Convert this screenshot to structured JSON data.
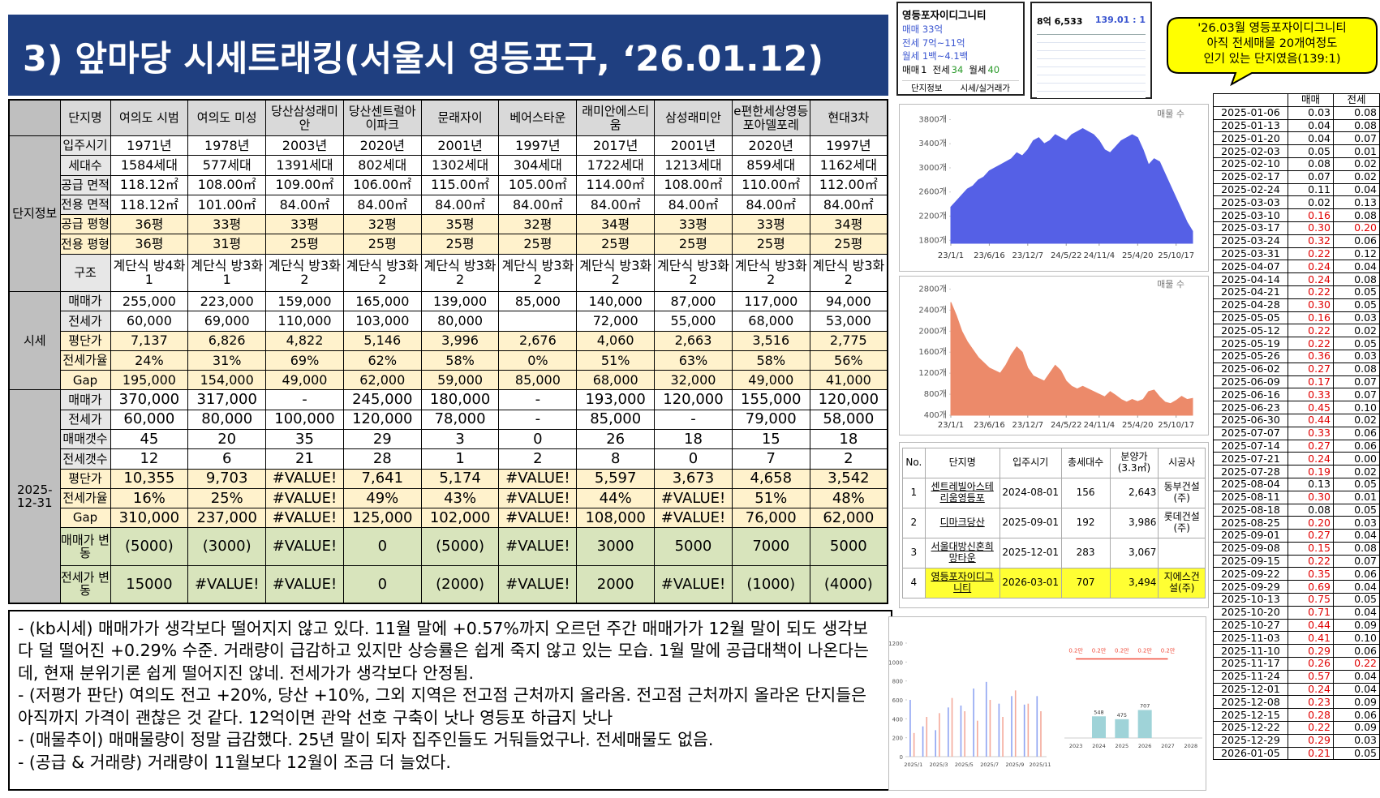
{
  "header": {
    "title": "3) 앞마당 시세트래킹(서울시 영등포구, ‘26.01.12)"
  },
  "main_table": {
    "columns": [
      "단지명",
      "여의도 시범",
      "여의도 미성",
      "당산삼성래미안",
      "당산센트럴아이파크",
      "문래자이",
      "베어스타운",
      "래미안에스티움",
      "삼성래미안",
      "e편한세상영등포아델포레",
      "현대3차"
    ],
    "groups": [
      {
        "label": "단지정보",
        "rows": [
          {
            "label": "입주시기",
            "cells": [
              "1971년",
              "1978년",
              "2003년",
              "2020년",
              "2001년",
              "1997년",
              "2017년",
              "2001년",
              "2020년",
              "1997년"
            ]
          },
          {
            "label": "세대수",
            "cells": [
              "1584세대",
              "577세대",
              "1391세대",
              "802세대",
              "1302세대",
              "304세대",
              "1722세대",
              "1213세대",
              "859세대",
              "1162세대"
            ]
          },
          {
            "label": "공급 면적",
            "cells": [
              "118.12㎡",
              "108.00㎡",
              "109.00㎡",
              "106.00㎡",
              "115.00㎡",
              "105.00㎡",
              "114.00㎡",
              "108.00㎡",
              "110.00㎡",
              "112.00㎡"
            ]
          },
          {
            "label": "전용 면적",
            "cells": [
              "118.12㎡",
              "101.00㎡",
              "84.00㎡",
              "84.00㎡",
              "84.00㎡",
              "84.00㎡",
              "84.00㎡",
              "84.00㎡",
              "84.00㎡",
              "84.00㎡"
            ]
          },
          {
            "label": "공급 평형",
            "cells": [
              "36평",
              "33평",
              "33평",
              "32평",
              "35평",
              "32평",
              "34평",
              "33평",
              "33평",
              "34평"
            ]
          },
          {
            "label": "전용 평형",
            "cells": [
              "36평",
              "31평",
              "25평",
              "25평",
              "25평",
              "25평",
              "25평",
              "25평",
              "25평",
              "25평"
            ]
          },
          {
            "label": "구조",
            "cells": [
              "계단식 방4화1",
              "계단식 방3화1",
              "계단식 방3화2",
              "계단식 방3화2",
              "계단식 방3화2",
              "계단식 방3화2",
              "계단식 방3화2",
              "계단식 방3화2",
              "계단식 방3화2",
              "계단식 방3화2"
            ]
          }
        ]
      },
      {
        "label": "시세",
        "rows": [
          {
            "label": "매매가",
            "cells": [
              "255,000",
              "223,000",
              "159,000",
              "165,000",
              "139,000",
              "85,000",
              "140,000",
              "87,000",
              "117,000",
              "94,000"
            ]
          },
          {
            "label": "전세가",
            "cells": [
              "60,000",
              "69,000",
              "110,000",
              "103,000",
              "80,000",
              null,
              "72,000",
              "55,000",
              "68,000",
              "53,000"
            ]
          },
          {
            "label": "평단가",
            "cells": [
              "7,137",
              "6,826",
              "4,822",
              "5,146",
              "3,996",
              "2,676",
              "4,060",
              "2,663",
              "3,516",
              "2,775"
            ]
          },
          {
            "label": "전세가율",
            "cells": [
              "24%",
              "31%",
              "69%",
              "62%",
              "58%",
              "0%",
              "51%",
              "63%",
              "58%",
              "56%"
            ]
          },
          {
            "label": "Gap",
            "cells": [
              "195,000",
              "154,000",
              "49,000",
              "62,000",
              "59,000",
              "85,000",
              "68,000",
              "32,000",
              "49,000",
              "41,000"
            ]
          }
        ]
      },
      {
        "label": "2025-12-31",
        "rows": [
          {
            "label": "매매가",
            "cells": [
              "370,000",
              "317,000",
              "-",
              "245,000",
              "180,000",
              "-",
              "193,000",
              "120,000",
              "155,000",
              "120,000"
            ]
          },
          {
            "label": "전세가",
            "cells": [
              "60,000",
              "80,000",
              "100,000",
              "120,000",
              "78,000",
              "-",
              "85,000",
              "-",
              "79,000",
              "58,000"
            ]
          },
          {
            "label": "매매갯수",
            "cells": [
              "45",
              "20",
              "35",
              "29",
              "3",
              "0",
              "26",
              "18",
              "15",
              "18"
            ]
          },
          {
            "label": "전세갯수",
            "cells": [
              "12",
              "6",
              "21",
              "28",
              "1",
              "2",
              "8",
              "0",
              "7",
              "2"
            ]
          },
          {
            "label": "평단가",
            "cells": [
              "10,355",
              "9,703",
              "#VALUE!",
              "7,641",
              "5,174",
              "#VALUE!",
              "5,597",
              "3,673",
              "4,658",
              "3,542"
            ]
          },
          {
            "label": "전세가율",
            "cells": [
              "16%",
              "25%",
              "#VALUE!",
              "49%",
              "43%",
              "#VALUE!",
              "44%",
              "#VALUE!",
              "51%",
              "48%"
            ]
          },
          {
            "label": "Gap",
            "cells": [
              "310,000",
              "237,000",
              "#VALUE!",
              "125,000",
              "102,000",
              "#VALUE!",
              "108,000",
              "#VALUE!",
              "76,000",
              "62,000"
            ]
          },
          {
            "label": "매매가 변동",
            "cells": [
              "(5000)",
              "(3000)",
              "#VALUE!",
              "0",
              "(5000)",
              "#VALUE!",
              "3000",
              "5000",
              "7000",
              "5000"
            ]
          },
          {
            "label": "전세가 변동",
            "cells": [
              "15000",
              "#VALUE!",
              "#VALUE!",
              "0",
              "(2000)",
              "#VALUE!",
              "2000",
              "#VALUE!",
              "(1000)",
              "(4000)"
            ]
          }
        ]
      }
    ]
  },
  "notes": [
    "- (kb시세) 매매가가 생각보다 떨어지지 않고 있다. 11월 말에 +0.57%까지 오르던 주간 매매가가 12월 말이 되도 생각보다 덜 떨어진 +0.29% 수준. 거래량이 급감하고 있지만 상승률은 쉽게 죽지 않고 있는 모습. 1월 말에 공급대책이 나온다는데, 현재 분위기론 쉽게 떨어지진 않네. 전세가가 생각보다 안정됨.",
    "- (저평가 판단) 여의도 전고 +20%, 당산 +10%, 그외 지역은 전고점 근처까지 올라옴. 전고점 근처까지 올라온 단지들은 아직까지 가격이 괜찮은 것 같다. 12억이면 관악 선호 구축이 낫나 영등포 하급지 낫나",
    "- (매물추이) 매매물량이 정말 급감했다. 25년 말이 되자 집주인들도 거둬들었구나. 전세매물도 없음.",
    "- (공급 & 거래량) 거래량이 11월보다 12월이 조금 더 늘었다."
  ],
  "app_card": {
    "name": "영등포자이디그니티",
    "sale": "매매 33억",
    "jeonse": "전세 7억~11억",
    "monthly": "월세 1백~4.1백",
    "counts": [
      {
        "label": "매매",
        "value": "1"
      },
      {
        "label": "전세",
        "value": "34"
      },
      {
        "label": "월세",
        "value": "40"
      }
    ],
    "tabs": [
      "단지정보",
      "시세/실거래가"
    ]
  },
  "app_card2": {
    "price": "8억 6,533",
    "ratio": "139.01 : 1"
  },
  "callout": [
    "'26.03월 영등포자이디그니티",
    "아직 전세매물 20개여정도",
    "인기 있는 단지였음(139:1)"
  ],
  "supply_table": {
    "columns": [
      "No.",
      "단지명",
      "입주시기",
      "총세대수",
      "분양가(3.3㎡)",
      "시공사"
    ],
    "rows": [
      [
        "1",
        "센트레빌아스테리움영등포",
        "2024-08-01",
        "156",
        "2,643",
        "동부건설(주)"
      ],
      [
        "2",
        "디마크당산",
        "2025-09-01",
        "192",
        "3,986",
        "롯데건설(주)"
      ],
      [
        "3",
        "서울대방신혼희망타운",
        "2025-12-01",
        "283",
        "3,067",
        null
      ],
      [
        "4",
        "영등포자이디그니티",
        "2026-03-01",
        "707",
        "3,494",
        "지에스건설(주)"
      ]
    ]
  },
  "weekly_table": {
    "columns": [
      "매매",
      "전세"
    ],
    "rows": [
      [
        "2025-01-06",
        "0.03",
        "0.08"
      ],
      [
        "2025-01-13",
        "0.04",
        "0.08"
      ],
      [
        "2025-01-20",
        "0.04",
        "0.07"
      ],
      [
        "2025-02-03",
        "0.05",
        "0.01"
      ],
      [
        "2025-02-10",
        "0.08",
        "0.02"
      ],
      [
        "2025-02-17",
        "0.07",
        "0.02"
      ],
      [
        "2025-02-24",
        "0.11",
        "0.04"
      ],
      [
        "2025-03-03",
        "0.02",
        "0.13"
      ],
      [
        "2025-03-10",
        "0.16",
        "0.08"
      ],
      [
        "2025-03-17",
        "0.30",
        "0.20"
      ],
      [
        "2025-03-24",
        "0.32",
        "0.06"
      ],
      [
        "2025-03-31",
        "0.22",
        "0.12"
      ],
      [
        "2025-04-07",
        "0.24",
        "0.04"
      ],
      [
        "2025-04-14",
        "0.24",
        "0.08"
      ],
      [
        "2025-04-21",
        "0.22",
        "0.05"
      ],
      [
        "2025-04-28",
        "0.30",
        "0.05"
      ],
      [
        "2025-05-05",
        "0.16",
        "0.03"
      ],
      [
        "2025-05-12",
        "0.22",
        "0.02"
      ],
      [
        "2025-05-19",
        "0.22",
        "0.05"
      ],
      [
        "2025-05-26",
        "0.36",
        "0.03"
      ],
      [
        "2025-06-02",
        "0.27",
        "0.08"
      ],
      [
        "2025-06-09",
        "0.17",
        "0.07"
      ],
      [
        "2025-06-16",
        "0.33",
        "0.07"
      ],
      [
        "2025-06-23",
        "0.45",
        "0.10"
      ],
      [
        "2025-06-30",
        "0.44",
        "0.02"
      ],
      [
        "2025-07-07",
        "0.33",
        "0.06"
      ],
      [
        "2025-07-14",
        "0.27",
        "0.06"
      ],
      [
        "2025-07-21",
        "0.24",
        "0.00"
      ],
      [
        "2025-07-28",
        "0.19",
        "0.02"
      ],
      [
        "2025-08-04",
        "0.13",
        "0.05"
      ],
      [
        "2025-08-11",
        "0.30",
        "0.01"
      ],
      [
        "2025-08-18",
        "0.08",
        "0.05"
      ],
      [
        "2025-08-25",
        "0.20",
        "0.03"
      ],
      [
        "2025-09-01",
        "0.27",
        "0.04"
      ],
      [
        "2025-09-08",
        "0.15",
        "0.08"
      ],
      [
        "2025-09-15",
        "0.22",
        "0.07"
      ],
      [
        "2025-09-22",
        "0.35",
        "0.06"
      ],
      [
        "2025-09-29",
        "0.69",
        "0.04"
      ],
      [
        "2025-10-13",
        "0.75",
        "0.05"
      ],
      [
        "2025-10-20",
        "0.71",
        "0.04"
      ],
      [
        "2025-10-27",
        "0.44",
        "0.09"
      ],
      [
        "2025-11-03",
        "0.41",
        "0.10"
      ],
      [
        "2025-11-10",
        "0.29",
        "0.06"
      ],
      [
        "2025-11-17",
        "0.26",
        "0.22"
      ],
      [
        "2025-11-24",
        "0.57",
        "0.04"
      ],
      [
        "2025-12-01",
        "0.24",
        "0.04"
      ],
      [
        "2025-12-08",
        "0.23",
        "0.09"
      ],
      [
        "2025-12-15",
        "0.28",
        "0.06"
      ],
      [
        "2025-12-22",
        "0.22",
        "0.09"
      ],
      [
        "2025-12-29",
        "0.29",
        "0.03"
      ],
      [
        "2026-01-05",
        "0.21",
        "0.05"
      ]
    ]
  },
  "chart_data": [
    {
      "type": "area",
      "annotation": "매물 수",
      "color": "#5560e6",
      "ylim": [
        1750,
        3900
      ],
      "yticks": [
        {
          "value": 1800,
          "label": "1800개"
        },
        {
          "value": 2200,
          "label": "2200개"
        },
        {
          "value": 2600,
          "label": "2600개"
        },
        {
          "value": 3000,
          "label": "3000개"
        },
        {
          "value": 3400,
          "label": "3400개"
        },
        {
          "value": 3800,
          "label": "3800개"
        }
      ],
      "xlim": [
        0,
        44
      ],
      "xticks": [
        {
          "value": 0,
          "label": "23/1/1"
        },
        {
          "value": 7,
          "label": "23/6/16"
        },
        {
          "value": 14,
          "label": "23/12/7"
        },
        {
          "value": 21,
          "label": "24/5/22"
        },
        {
          "value": 27,
          "label": "24/11/4"
        },
        {
          "value": 34,
          "label": "25/4/20"
        },
        {
          "value": 41,
          "label": "25/10/17"
        }
      ],
      "values": [
        2350,
        2450,
        2550,
        2650,
        2700,
        2800,
        2850,
        2950,
        3000,
        3050,
        3100,
        3150,
        3250,
        3200,
        3300,
        3450,
        3500,
        3400,
        3450,
        3550,
        3500,
        3450,
        3550,
        3600,
        3650,
        3600,
        3550,
        3450,
        3300,
        3250,
        3350,
        3450,
        3500,
        3550,
        3500,
        3300,
        3050,
        3150,
        3100,
        2900,
        2700,
        2500,
        2300,
        2100,
        1950
      ]
    },
    {
      "type": "area",
      "annotation": "매물 수",
      "color": "#ec8a6a",
      "ylim": [
        400,
        2900
      ],
      "yticks": [
        {
          "value": 400,
          "label": "400개"
        },
        {
          "value": 800,
          "label": "800개"
        },
        {
          "value": 1200,
          "label": "1200개"
        },
        {
          "value": 1600,
          "label": "1600개"
        },
        {
          "value": 2000,
          "label": "2000개"
        },
        {
          "value": 2400,
          "label": "2400개"
        },
        {
          "value": 2800,
          "label": "2800개"
        }
      ],
      "xlim": [
        0,
        44
      ],
      "xticks": [
        {
          "value": 0,
          "label": "23/1/1"
        },
        {
          "value": 7,
          "label": "23/6/16"
        },
        {
          "value": 14,
          "label": "23/12/7"
        },
        {
          "value": 21,
          "label": "24/5/22"
        },
        {
          "value": 27,
          "label": "24/11/4"
        },
        {
          "value": 34,
          "label": "25/4/20"
        },
        {
          "value": 41,
          "label": "25/10/17"
        }
      ],
      "values": [
        2550,
        2300,
        2000,
        1800,
        1650,
        1500,
        1400,
        1300,
        1250,
        1200,
        1350,
        1550,
        1700,
        1600,
        1300,
        1150,
        1100,
        1050,
        1200,
        1350,
        1250,
        1050,
        950,
        900,
        950,
        900,
        850,
        800,
        750,
        850,
        780,
        700,
        650,
        700,
        660,
        700,
        850,
        880,
        750,
        650,
        620,
        680,
        760,
        700,
        720
      ]
    },
    {
      "type": "bar",
      "categories": [
        "2025/1",
        null,
        "2025/3",
        null,
        "2025/5",
        null,
        "2025/7",
        null,
        "2025/9",
        null,
        "2025/11"
      ],
      "ylim": [
        0,
        1200
      ],
      "yticks": [
        0,
        200,
        400,
        600,
        800,
        1000,
        1200
      ],
      "series": [
        {
          "color": "#8ea3f2",
          "values": [
            600,
            320,
            280,
            520,
            540,
            720,
            790,
            560,
            640,
            550,
            640
          ]
        },
        {
          "color": "#f4a99a",
          "values": [
            250,
            420,
            460,
            620,
            480,
            380,
            600,
            420,
            700,
            560,
            480
          ]
        }
      ]
    },
    {
      "type": "bar",
      "categories": [
        "2023",
        "2024",
        "2025",
        "2026",
        "2027",
        "2028"
      ],
      "ylim": [
        0,
        2400
      ],
      "color": "#9fd3d8",
      "values": [
        null,
        548,
        475,
        707,
        null,
        null
      ],
      "line_color": "#f04b3a",
      "line_values": [
        2000,
        2000,
        2000,
        2000,
        2000,
        null
      ],
      "line_labels": [
        "0.2만",
        "0.2만",
        "0.2만",
        "0.2만",
        "0.2만",
        null
      ]
    }
  ]
}
